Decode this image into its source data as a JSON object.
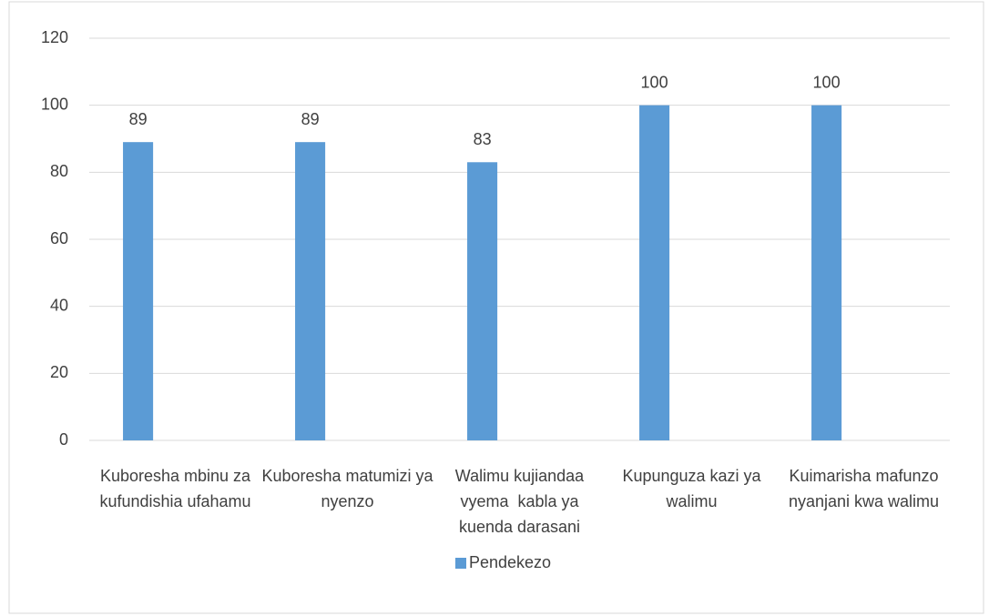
{
  "chart_data": {
    "type": "bar",
    "categories": [
      "Kuboresha mbinu za kufundishia ufahamu",
      "Kuboresha matumizi ya nyenzo",
      "Walimu kujiandaa vyema  kabla ya kuenda darasani",
      "Kupunguza kazi ya walimu",
      "Kuimarisha mafunzo nyanjani kwa walimu"
    ],
    "series": [
      {
        "name": "Pendekezo",
        "color": "#5b9bd5",
        "values": [
          89,
          89,
          83,
          100,
          100
        ]
      }
    ],
    "ylim": [
      0,
      120
    ],
    "yticks": [
      0,
      20,
      40,
      60,
      80,
      100,
      120
    ],
    "grid": true,
    "legend": "bottom"
  }
}
